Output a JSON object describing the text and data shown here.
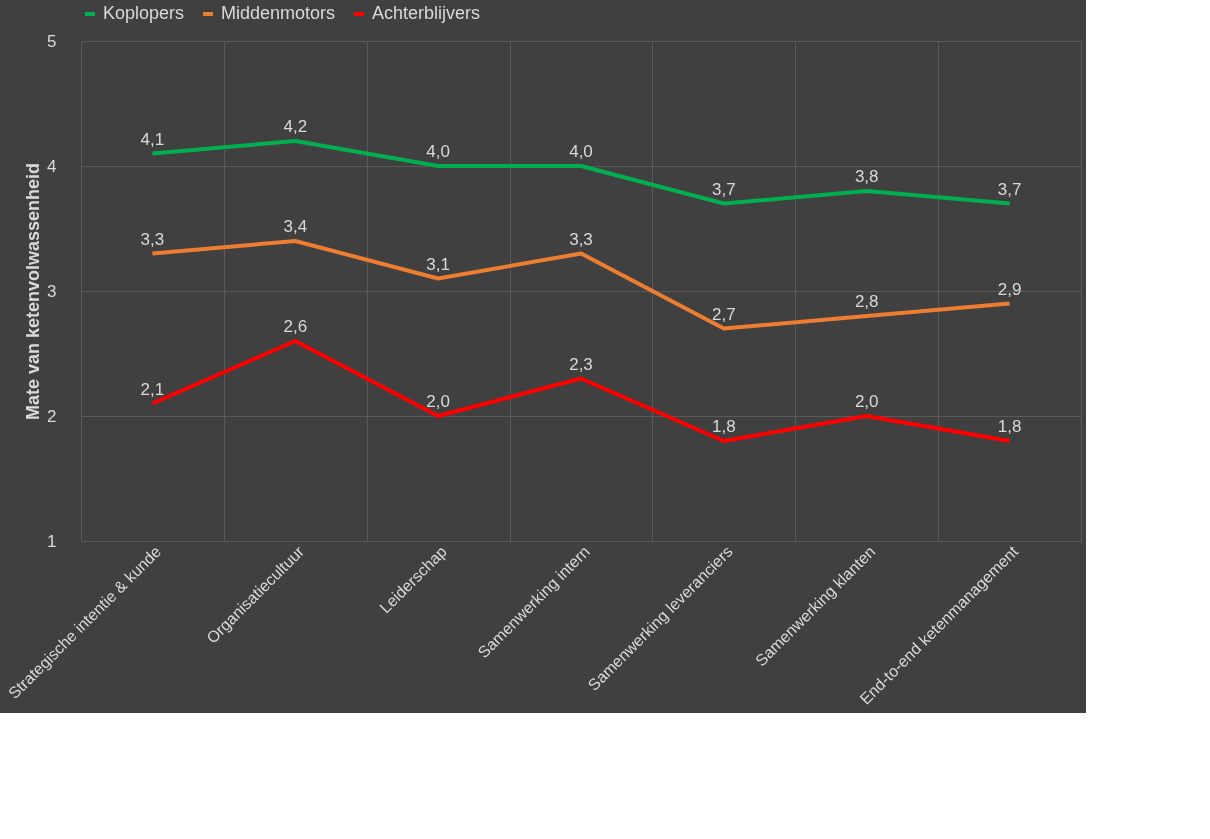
{
  "chart_data": {
    "type": "line",
    "ylabel": "Mate van ketenvolwassenheid",
    "categories": [
      "Strategische intentie & kunde",
      "Organisatiecultuur",
      "Leiderschap",
      "Samenwerking intern",
      "Samenwerking leveranciers",
      "Samenwerking klanten",
      "End-to-end ketenmanagement"
    ],
    "series": [
      {
        "name": "Koplopers",
        "color": "#00b050",
        "values": [
          4.1,
          4.2,
          4.0,
          4.0,
          3.7,
          3.8,
          3.7
        ],
        "value_labels": [
          "4,1",
          "4,2",
          "4,0",
          "4,0",
          "3,7",
          "3,8",
          "3,7"
        ]
      },
      {
        "name": "Middenmotors",
        "color": "#ed7d31",
        "values": [
          3.3,
          3.4,
          3.1,
          3.3,
          2.7,
          2.8,
          2.9
        ],
        "value_labels": [
          "3,3",
          "3,4",
          "3,1",
          "3,3",
          "2,7",
          "2,8",
          "2,9"
        ]
      },
      {
        "name": "Achterblijvers",
        "color": "#ff0000",
        "values": [
          2.1,
          2.6,
          2.0,
          2.3,
          1.8,
          2.0,
          1.8
        ],
        "value_labels": [
          "2,1",
          "2,6",
          "2,0",
          "2,3",
          "1,8",
          "2,0",
          "1,8"
        ]
      }
    ],
    "ylim": [
      1,
      5
    ],
    "yticks": [
      1,
      2,
      3,
      4,
      5
    ],
    "grid": true,
    "legend": "top",
    "marker": "none",
    "line_style": "solid"
  }
}
